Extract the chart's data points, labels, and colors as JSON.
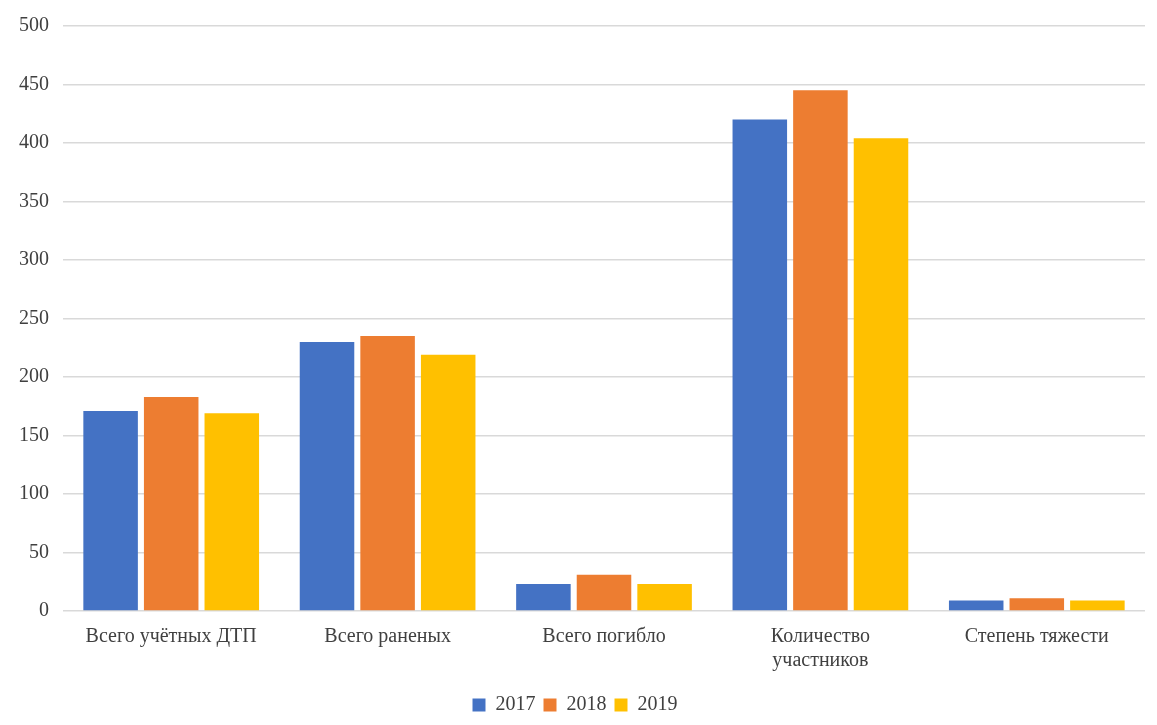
{
  "chart_data": {
    "type": "bar",
    "categories": [
      "Всего учётных ДТП",
      "Всего раненых",
      "Всего погибло",
      "Количество участников",
      "Степень тяжести"
    ],
    "series": [
      {
        "name": "2017",
        "color": "#4472c4",
        "values": [
          171,
          230,
          23,
          420,
          9
        ]
      },
      {
        "name": "2018",
        "color": "#ed7d31",
        "values": [
          183,
          235,
          31,
          445,
          11
        ]
      },
      {
        "name": "2019",
        "color": "#ffc000",
        "values": [
          169,
          219,
          23,
          404,
          9
        ]
      }
    ],
    "ylim": [
      0,
      500
    ],
    "yticks": [
      0,
      50,
      100,
      150,
      200,
      250,
      300,
      350,
      400,
      450,
      500
    ],
    "grid": "y",
    "legend": "bottom"
  }
}
